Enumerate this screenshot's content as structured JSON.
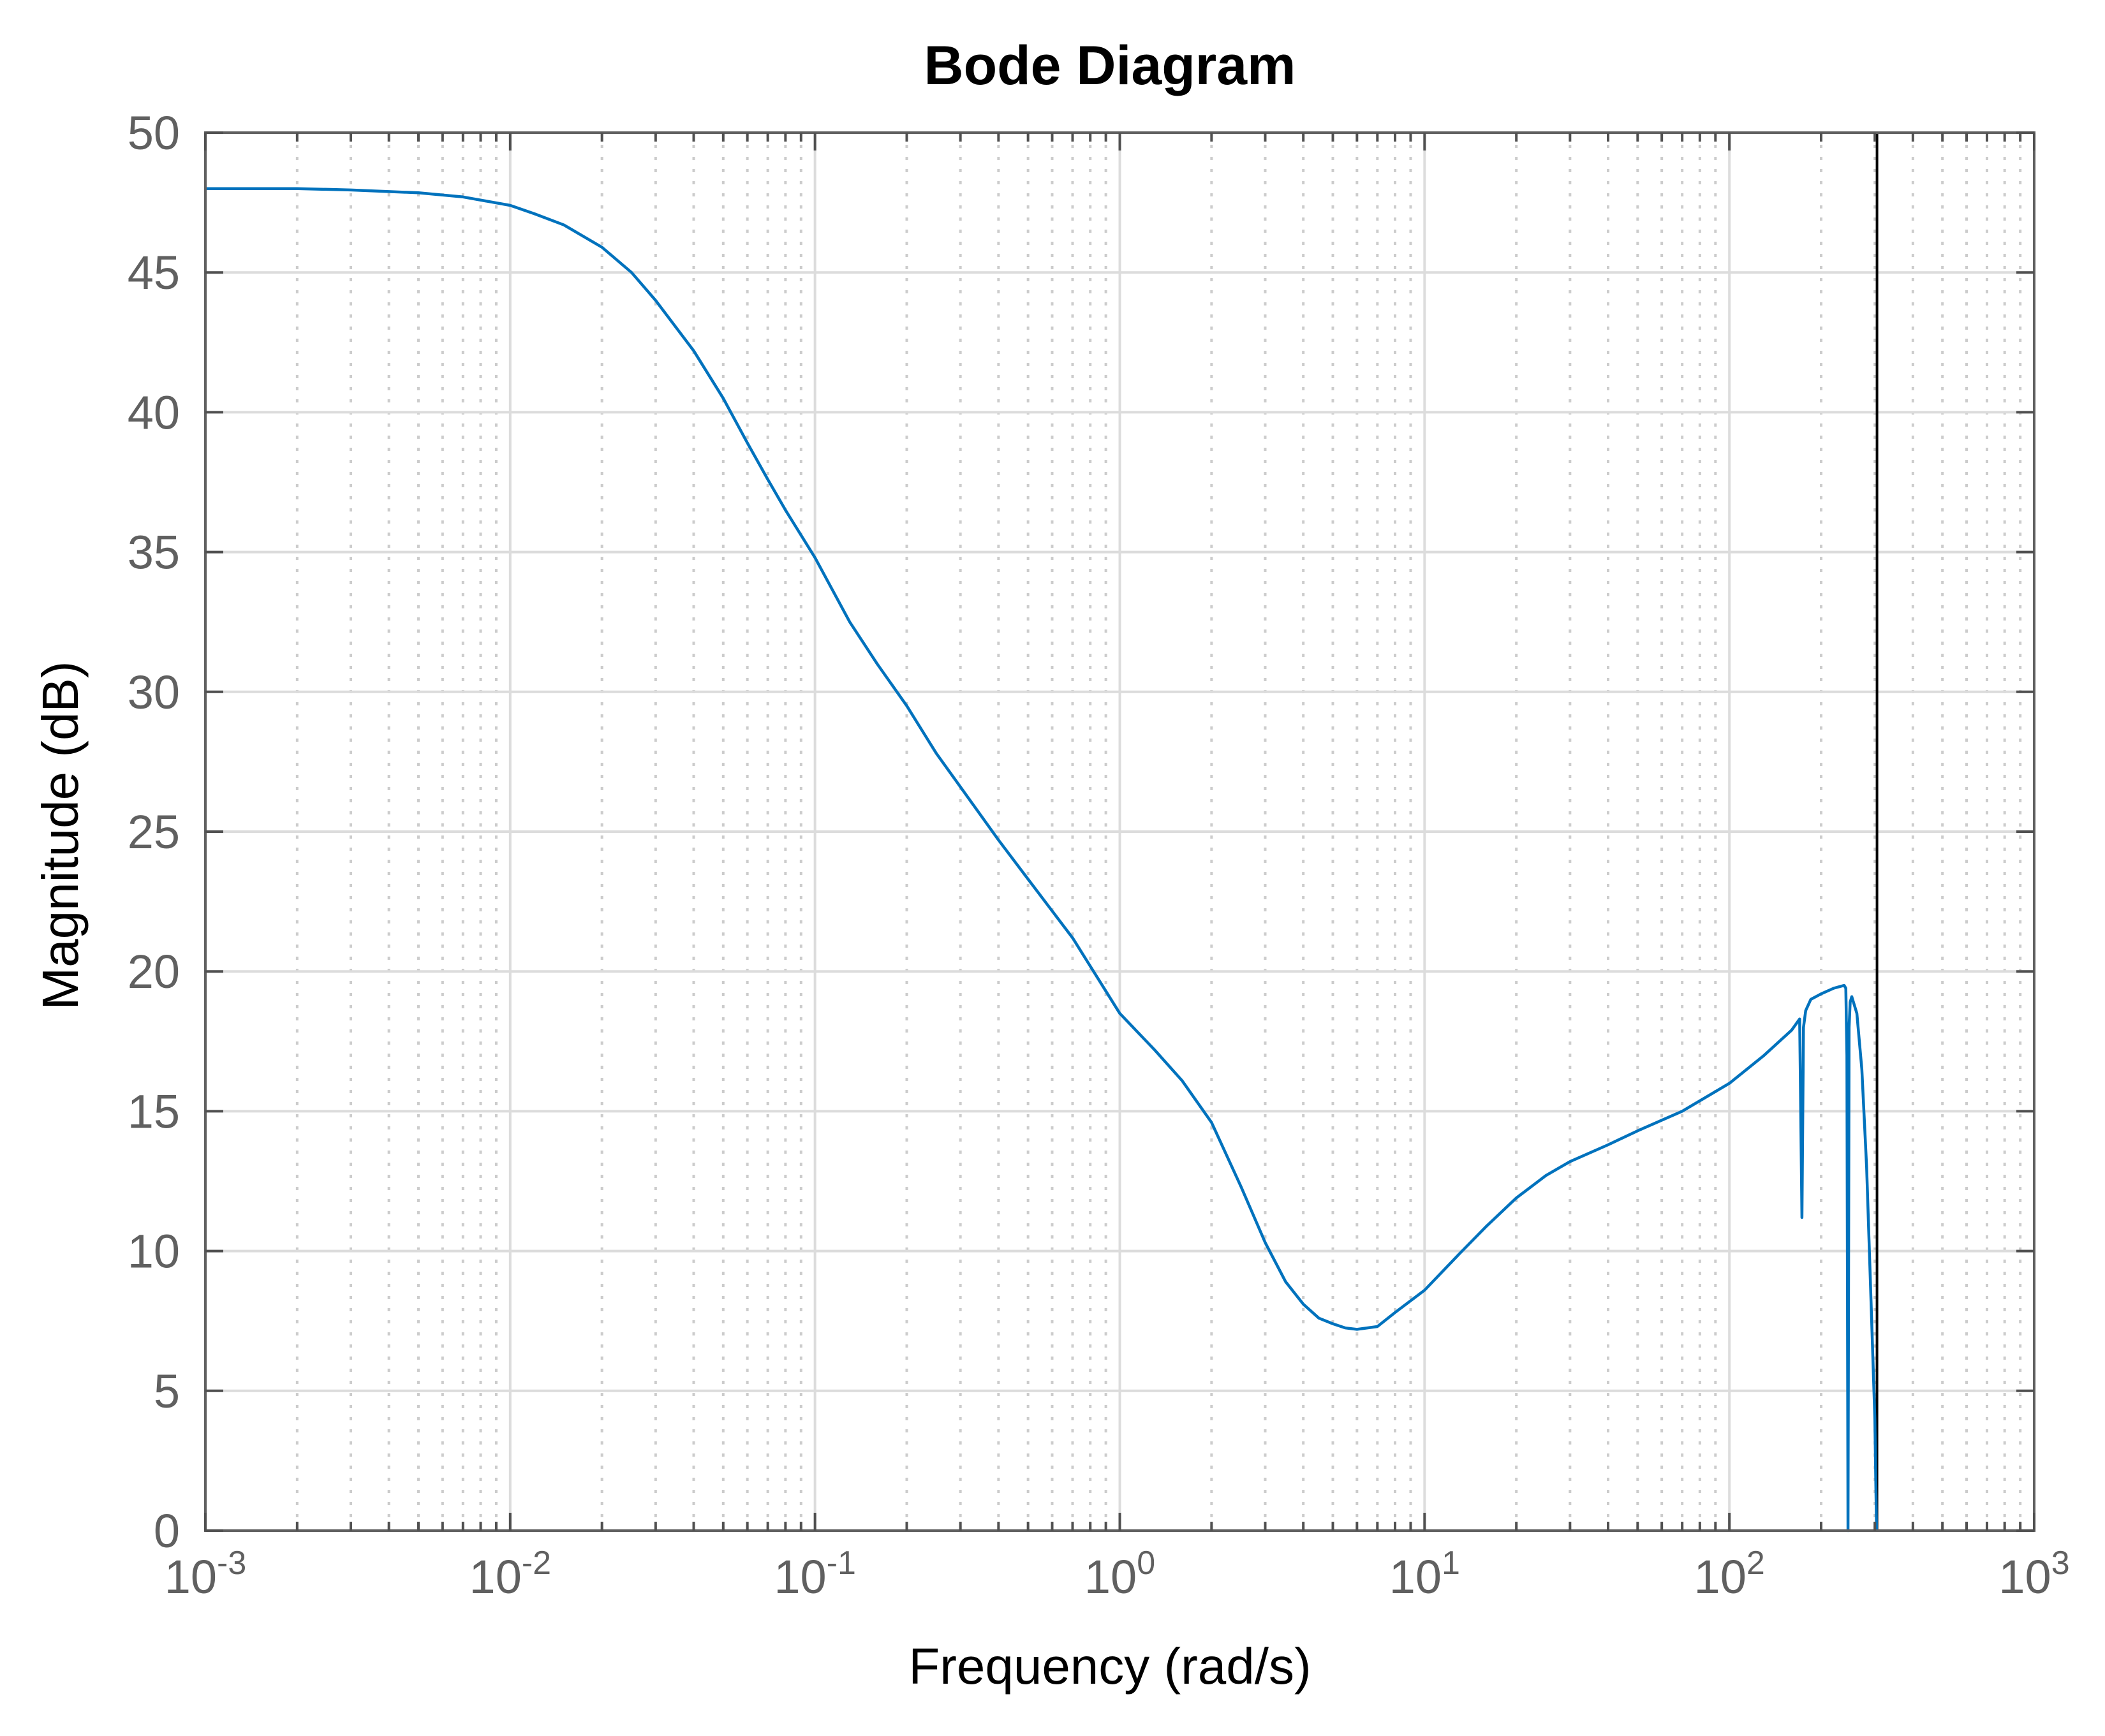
{
  "chart_data": {
    "type": "line",
    "title": "Bode Diagram",
    "xlabel": "Frequency  (rad/s)",
    "ylabel": "Magnitude (dB)",
    "xscale": "log",
    "xlim": [
      0.001,
      1000
    ],
    "ylim": [
      0,
      50
    ],
    "grid": true,
    "xticks": [
      {
        "base": "10",
        "exp": "-3",
        "value": 0.001
      },
      {
        "base": "10",
        "exp": "-2",
        "value": 0.01
      },
      {
        "base": "10",
        "exp": "-1",
        "value": 0.1
      },
      {
        "base": "10",
        "exp": "0",
        "value": 1
      },
      {
        "base": "10",
        "exp": "1",
        "value": 10
      },
      {
        "base": "10",
        "exp": "2",
        "value": 100
      },
      {
        "base": "10",
        "exp": "3",
        "value": 1000
      }
    ],
    "yticks": [
      "0",
      "5",
      "10",
      "15",
      "20",
      "25",
      "30",
      "35",
      "40",
      "45",
      "50"
    ],
    "series": [
      {
        "color": "#0072bd",
        "x": [
          0.001,
          0.002,
          0.003,
          0.005,
          0.007,
          0.01,
          0.012,
          0.015,
          0.02,
          0.025,
          0.03,
          0.04,
          0.05,
          0.06,
          0.07,
          0.08,
          0.1,
          0.13,
          0.16,
          0.2,
          0.25,
          0.3,
          0.4,
          0.5,
          0.7,
          1.0,
          1.3,
          1.6,
          2.0,
          2.5,
          3.0,
          3.5,
          4.0,
          4.5,
          5.0,
          5.5,
          6.0,
          7.0,
          8.0,
          10,
          13,
          16,
          20,
          25,
          30,
          40,
          50,
          70,
          100,
          130,
          160,
          170,
          173,
          175,
          178,
          185,
          200,
          220,
          238,
          241,
          243,
          245,
          247,
          249,
          252,
          262,
          272,
          282,
          292,
          300,
          302,
          304
        ],
        "y": [
          48.0,
          48.0,
          47.95,
          47.85,
          47.7,
          47.4,
          47.1,
          46.7,
          45.9,
          45.0,
          44.0,
          42.2,
          40.5,
          38.9,
          37.6,
          36.5,
          34.8,
          32.5,
          31.0,
          29.5,
          27.8,
          26.6,
          24.7,
          23.3,
          21.2,
          18.5,
          17.2,
          16.1,
          14.6,
          12.3,
          10.3,
          8.9,
          8.1,
          7.6,
          7.4,
          7.25,
          7.2,
          7.3,
          7.8,
          8.6,
          9.9,
          10.9,
          11.9,
          12.7,
          13.2,
          13.8,
          14.3,
          15.0,
          16.0,
          17.0,
          17.9,
          18.3,
          11.2,
          18.0,
          18.6,
          19.0,
          19.2,
          19.4,
          19.5,
          19.4,
          17.0,
          0.0,
          18.0,
          18.9,
          19.1,
          18.5,
          16.5,
          13.0,
          8.0,
          4.0,
          2.0,
          0.0
        ]
      }
    ],
    "vertical_line": {
      "x": 305,
      "color": "#000000"
    }
  }
}
